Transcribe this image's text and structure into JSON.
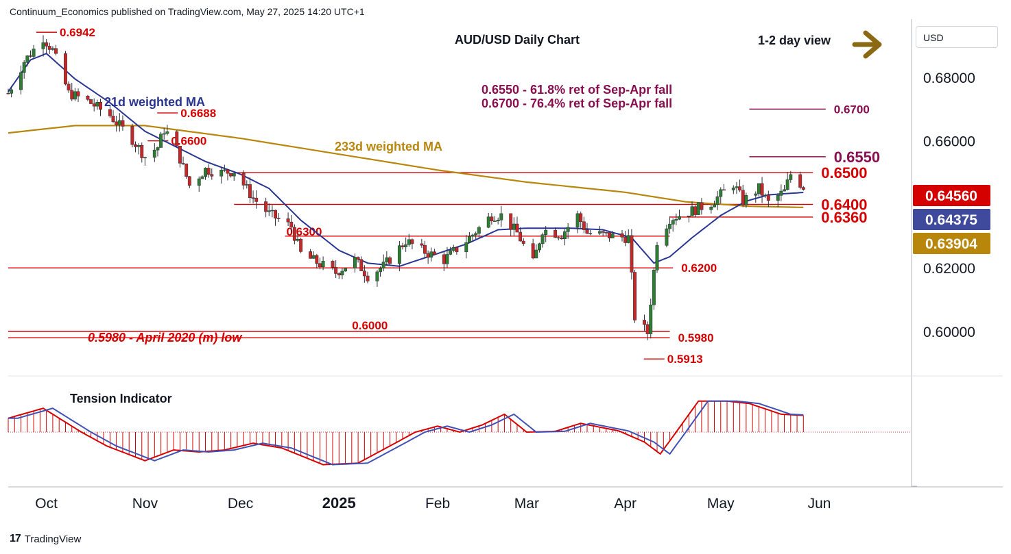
{
  "header": {
    "publisher_line": "Continuum_Economics published on TradingView.com, May 27, 2025 14:20 UTC+1"
  },
  "footer": {
    "brand": "TradingView",
    "logo_glyph": "17"
  },
  "currency": "USD",
  "chart_data": {
    "type": "candlestick",
    "title": "AUD/USD Daily Chart",
    "view_label": "1-2 day view",
    "view_arrow": "arrow-right-icon",
    "colors": {
      "up": "#2e7d32",
      "down": "#c62828",
      "level": "#d50000",
      "fib": "#880e4f",
      "ma21": "#283593",
      "ma233": "#b8860b",
      "tension": "#d50000",
      "tension_avg": "#3f51b5"
    },
    "y_axis": {
      "ticks": [
        0.68,
        0.66,
        0.62,
        0.6
      ],
      "tick_labels": [
        "0.68000",
        "0.66000",
        "0.62000",
        "0.60000"
      ],
      "range": [
        0.5866,
        0.6966
      ]
    },
    "x_axis": {
      "labels": [
        "Oct",
        "Nov",
        "Dec",
        "2025",
        "Feb",
        "Mar",
        "Apr",
        "May",
        "Jun"
      ],
      "dates": [
        "2024-10-01",
        "2024-11-01",
        "2024-12-01",
        "2025-01-01",
        "2025-02-01",
        "2025-03-01",
        "2025-04-01",
        "2025-05-01",
        "2025-06-01"
      ],
      "range": [
        "2024-09-19",
        "2025-06-30"
      ]
    },
    "price_badges": [
      {
        "label": "0.64560",
        "bg": "#d50000",
        "fg": "#ffffff"
      },
      {
        "label": "0.64375",
        "bg": "#3f4a9c",
        "fg": "#ffffff"
      },
      {
        "label": "0.63904",
        "bg": "#b8860b",
        "fg": "#ffffff"
      }
    ],
    "series_labels": {
      "ma21": "21d weighted MA",
      "ma233": "233d weighted MA",
      "tension": "Tension Indicator"
    },
    "annotations": {
      "fib_note_1": "0.6550 - 61.8% ret of Sep-Apr fall",
      "fib_note_2": "0.6700 - 76.4% ret of Sep-Apr fall",
      "april_low_note": "0.5980 - April 2020 (m) low"
    },
    "horizontal_levels": [
      {
        "value": 0.67,
        "label": "0.6700",
        "start": "2025-05-10",
        "end": "2025-06-03",
        "color": "fib",
        "label_side": "right"
      },
      {
        "value": 0.655,
        "label": "0.6550",
        "start": "2025-05-10",
        "end": "2025-06-03",
        "color": "fib",
        "label_side": "right"
      },
      {
        "value": 0.65,
        "label": "0.6500",
        "start": "2024-11-29",
        "end": "2025-05-30",
        "color": "level",
        "label_side": "right"
      },
      {
        "value": 0.64,
        "label": "0.6400",
        "start": "2024-11-29",
        "end": "2025-05-30",
        "color": "level",
        "label_side": "right"
      },
      {
        "value": 0.636,
        "label": "0.6360",
        "start": "2025-04-15",
        "end": "2025-05-30",
        "color": "level",
        "label_side": "right"
      },
      {
        "value": 0.63,
        "label": "0.6300",
        "start": "2024-12-15",
        "end": "2025-04-15",
        "color": "level",
        "label_side": "left"
      },
      {
        "value": 0.62,
        "label": "0.6200",
        "start": "2024-09-19",
        "end": "2025-04-16",
        "color": "level",
        "label_side": "right"
      },
      {
        "value": 0.6,
        "label": "0.6000",
        "start": "2024-09-19",
        "end": "2025-04-15",
        "color": "level",
        "label_side": "above"
      },
      {
        "value": 0.598,
        "label": "0.5980",
        "start": "2024-09-19",
        "end": "2025-04-15",
        "color": "level",
        "label_side": "right"
      }
    ],
    "extremes": [
      {
        "date": "2024-09-30",
        "value": 0.6942,
        "label": "0.6942"
      },
      {
        "date": "2024-11-07",
        "value": 0.6688,
        "label": "0.6688"
      },
      {
        "date": "2024-11-04",
        "value": 0.66,
        "label": "0.6600"
      },
      {
        "date": "2025-04-09",
        "value": 0.5913,
        "label": "0.5913"
      }
    ],
    "price_anchors": [
      [
        "2024-09-19",
        0.675
      ],
      [
        "2024-09-24",
        0.685
      ],
      [
        "2024-09-30",
        0.6925
      ],
      [
        "2024-10-03",
        0.6885
      ],
      [
        "2024-10-08",
        0.675
      ],
      [
        "2024-10-14",
        0.6725
      ],
      [
        "2024-10-21",
        0.668
      ],
      [
        "2024-10-28",
        0.6605
      ],
      [
        "2024-11-01",
        0.655
      ],
      [
        "2024-11-05",
        0.658
      ],
      [
        "2024-11-07",
        0.6635
      ],
      [
        "2024-11-10",
        0.66
      ],
      [
        "2024-11-15",
        0.646
      ],
      [
        "2024-11-20",
        0.651
      ],
      [
        "2024-11-25",
        0.65
      ],
      [
        "2024-11-29",
        0.6505
      ],
      [
        "2024-12-05",
        0.642
      ],
      [
        "2024-12-10",
        0.637
      ],
      [
        "2024-12-17",
        0.633
      ],
      [
        "2024-12-20",
        0.6245
      ],
      [
        "2024-12-31",
        0.6185
      ],
      [
        "2025-01-06",
        0.6225
      ],
      [
        "2025-01-10",
        0.6175
      ],
      [
        "2025-01-15",
        0.6205
      ],
      [
        "2025-01-22",
        0.6285
      ],
      [
        "2025-01-27",
        0.6255
      ],
      [
        "2025-02-03",
        0.6225
      ],
      [
        "2025-02-10",
        0.6285
      ],
      [
        "2025-02-18",
        0.6365
      ],
      [
        "2025-02-21",
        0.6365
      ],
      [
        "2025-02-26",
        0.631
      ],
      [
        "2025-03-03",
        0.6215
      ],
      [
        "2025-03-06",
        0.632
      ],
      [
        "2025-03-12",
        0.6305
      ],
      [
        "2025-03-17",
        0.6365
      ],
      [
        "2025-03-20",
        0.631
      ],
      [
        "2025-03-28",
        0.63
      ],
      [
        "2025-04-02",
        0.6295
      ],
      [
        "2025-04-04",
        0.6045
      ],
      [
        "2025-04-08",
        0.5995
      ],
      [
        "2025-04-09",
        0.6095
      ],
      [
        "2025-04-11",
        0.6285
      ],
      [
        "2025-04-15",
        0.6355
      ],
      [
        "2025-04-22",
        0.638
      ],
      [
        "2025-04-28",
        0.6405
      ],
      [
        "2025-05-05",
        0.6465
      ],
      [
        "2025-05-08",
        0.641
      ],
      [
        "2025-05-13",
        0.645
      ],
      [
        "2025-05-16",
        0.6405
      ],
      [
        "2025-05-21",
        0.644
      ],
      [
        "2025-05-23",
        0.6495
      ],
      [
        "2025-05-27",
        0.6456
      ]
    ],
    "ma21_anchors": [
      [
        "2024-09-19",
        0.6755
      ],
      [
        "2024-09-26",
        0.6855
      ],
      [
        "2024-10-01",
        0.6875
      ],
      [
        "2024-10-10",
        0.6795
      ],
      [
        "2024-10-21",
        0.672
      ],
      [
        "2024-11-01",
        0.663
      ],
      [
        "2024-11-10",
        0.6585
      ],
      [
        "2024-11-20",
        0.6535
      ],
      [
        "2024-12-01",
        0.6495
      ],
      [
        "2024-12-10",
        0.645
      ],
      [
        "2024-12-20",
        0.635
      ],
      [
        "2025-01-01",
        0.6255
      ],
      [
        "2025-01-10",
        0.6215
      ],
      [
        "2025-01-20",
        0.6205
      ],
      [
        "2025-02-01",
        0.6245
      ],
      [
        "2025-02-10",
        0.6275
      ],
      [
        "2025-02-20",
        0.632
      ],
      [
        "2025-03-01",
        0.6325
      ],
      [
        "2025-03-15",
        0.6325
      ],
      [
        "2025-03-25",
        0.632
      ],
      [
        "2025-04-03",
        0.6295
      ],
      [
        "2025-04-10",
        0.6215
      ],
      [
        "2025-04-15",
        0.6235
      ],
      [
        "2025-04-22",
        0.6295
      ],
      [
        "2025-05-01",
        0.6365
      ],
      [
        "2025-05-09",
        0.641
      ],
      [
        "2025-05-16",
        0.643
      ],
      [
        "2025-05-27",
        0.64375
      ]
    ],
    "ma233_anchors": [
      [
        "2024-09-19",
        0.6625
      ],
      [
        "2024-10-10",
        0.6648
      ],
      [
        "2024-11-01",
        0.6648
      ],
      [
        "2024-12-01",
        0.6608
      ],
      [
        "2025-01-01",
        0.6558
      ],
      [
        "2025-02-01",
        0.6508
      ],
      [
        "2025-03-01",
        0.647
      ],
      [
        "2025-04-01",
        0.6438
      ],
      [
        "2025-04-20",
        0.6408
      ],
      [
        "2025-05-10",
        0.6394
      ],
      [
        "2025-05-27",
        0.63904
      ]
    ],
    "tension_anchors": [
      [
        "2024-09-19",
        0.35
      ],
      [
        "2024-09-30",
        0.6
      ],
      [
        "2024-10-12",
        0.0
      ],
      [
        "2024-10-20",
        -0.35
      ],
      [
        "2024-11-01",
        -0.72
      ],
      [
        "2024-11-10",
        -0.45
      ],
      [
        "2024-11-18",
        -0.5
      ],
      [
        "2024-11-26",
        -0.45
      ],
      [
        "2024-12-05",
        -0.28
      ],
      [
        "2024-12-14",
        -0.4
      ],
      [
        "2024-12-27",
        -0.82
      ],
      [
        "2025-01-07",
        -0.78
      ],
      [
        "2025-01-17",
        -0.35
      ],
      [
        "2025-01-25",
        0.0
      ],
      [
        "2025-02-01",
        0.15
      ],
      [
        "2025-02-08",
        0.0
      ],
      [
        "2025-02-15",
        0.18
      ],
      [
        "2025-02-22",
        0.45
      ],
      [
        "2025-03-01",
        0.0
      ],
      [
        "2025-03-10",
        0.02
      ],
      [
        "2025-03-18",
        0.22
      ],
      [
        "2025-03-30",
        0.03
      ],
      [
        "2025-04-07",
        -0.25
      ],
      [
        "2025-04-12",
        -0.55
      ],
      [
        "2025-04-17",
        0.0
      ],
      [
        "2025-04-24",
        0.78
      ],
      [
        "2025-05-03",
        0.78
      ],
      [
        "2025-05-10",
        0.72
      ],
      [
        "2025-05-20",
        0.45
      ],
      [
        "2025-05-27",
        0.42
      ]
    ]
  }
}
